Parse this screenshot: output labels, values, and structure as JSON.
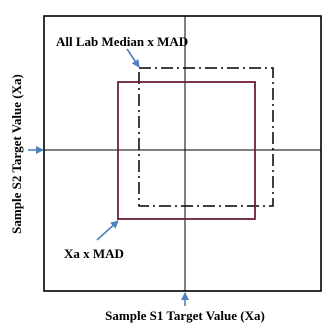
{
  "labels": {
    "all_lab_median": "All Lab Median x MAD",
    "xa_mad": "Xa x MAD",
    "x_axis": "Sample S1 Target Value (Xa)",
    "y_axis": "Sample S2 Target Value (Xa)"
  },
  "colors": {
    "frame": "#000000",
    "inner_square": "#6b1f3f",
    "dashdot_square": "#000000",
    "arrow": "#4f81bd"
  }
}
